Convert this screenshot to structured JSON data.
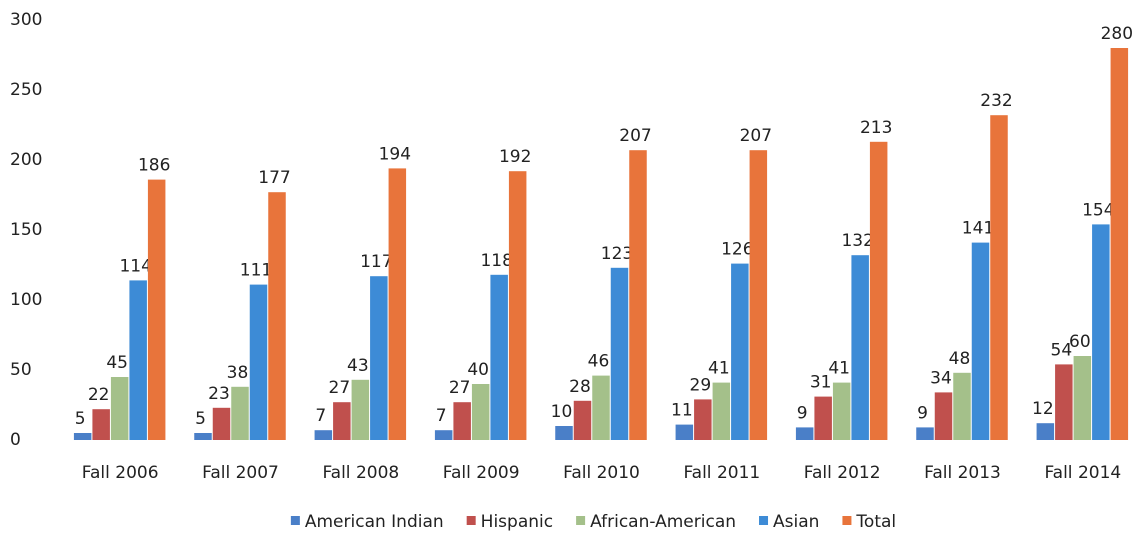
{
  "chart_data": {
    "type": "bar",
    "categories": [
      "Fall 2006",
      "Fall 2007",
      "Fall 2008",
      "Fall 2009",
      "Fall 2010",
      "Fall 2011",
      "Fall 2012",
      "Fall 2013",
      "Fall 2014"
    ],
    "series": [
      {
        "name": "American Indian",
        "color": "#4a7fc8",
        "values": [
          5,
          5,
          7,
          7,
          10,
          11,
          9,
          9,
          12
        ]
      },
      {
        "name": "Hispanic",
        "color": "#c0504d",
        "values": [
          22,
          23,
          27,
          27,
          28,
          29,
          31,
          34,
          54
        ]
      },
      {
        "name": "African-American",
        "color": "#a4c08a",
        "values": [
          45,
          38,
          43,
          40,
          46,
          41,
          41,
          48,
          60
        ]
      },
      {
        "name": "Asian",
        "color": "#3d8bd6",
        "values": [
          114,
          111,
          117,
          118,
          123,
          126,
          132,
          141,
          154
        ]
      },
      {
        "name": "Total",
        "color": "#e8743b",
        "values": [
          186,
          177,
          194,
          192,
          207,
          207,
          213,
          232,
          280
        ]
      }
    ],
    "ylim": [
      0,
      300
    ],
    "yticks": [
      0,
      50,
      100,
      150,
      200,
      250,
      300
    ],
    "grid": false,
    "legend": "bottom"
  }
}
